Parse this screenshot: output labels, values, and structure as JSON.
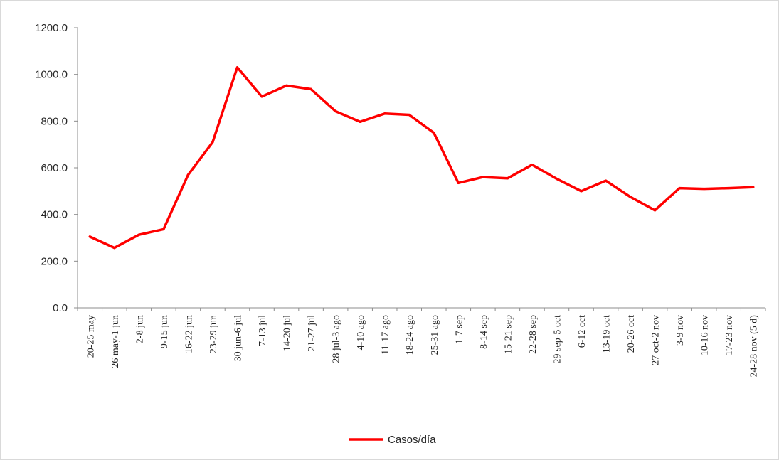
{
  "chart_data": {
    "type": "line",
    "categories": [
      "20-25 may",
      "26 may-1 jun",
      "2-8 jun",
      "9-15 jun",
      "16-22 jun",
      "23-29 jun",
      "30 jun-6 jul",
      "7-13 jul",
      "14-20 jul",
      "21-27 jul",
      "28 jul-3 ago",
      "4-10 ago",
      "11-17 ago",
      "18-24 ago",
      "25-31 ago",
      "1-7 sep",
      "8-14 sep",
      "15-21 sep",
      "22-28 sep",
      "29 sep-5 oct",
      "6-12 oct",
      "13-19 oct",
      "20-26 oct",
      "27 oct-2 nov",
      "3-9 nov",
      "10-16 nov",
      "17-23 nov",
      "24-28 nov (5 d)"
    ],
    "series": [
      {
        "name": "Casos/día",
        "color": "#ff0000",
        "values": [
          305,
          257,
          313,
          337,
          570,
          710,
          1030,
          905,
          952,
          937,
          842,
          797,
          832,
          827,
          750,
          535,
          560,
          555,
          613,
          553,
          500,
          545,
          475,
          418,
          513,
          510,
          513,
          517
        ]
      }
    ],
    "yticks": [
      "0.0",
      "200.0",
      "400.0",
      "600.0",
      "800.0",
      "1000.0",
      "1200.0"
    ],
    "ylim": [
      0,
      1200
    ],
    "title": "",
    "xlabel": "",
    "ylabel": "",
    "grid": false,
    "legend": "bottom-center"
  }
}
